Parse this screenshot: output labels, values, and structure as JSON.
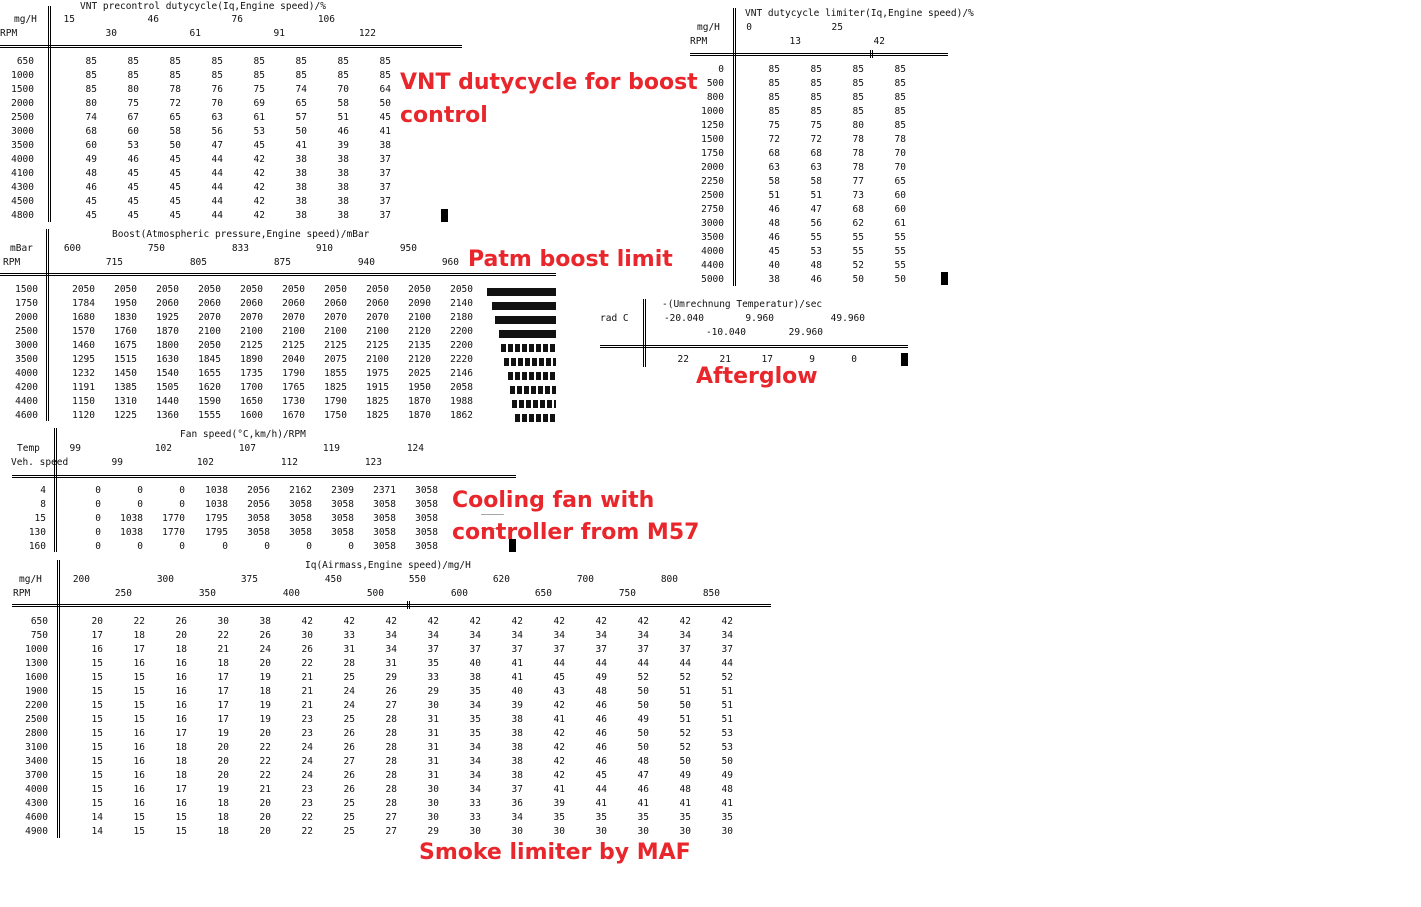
{
  "annotations": {
    "vnt": [
      "VNT dutycycle for boost",
      "control"
    ],
    "patm": "Patm boost limit",
    "afterglow": "Afterglow",
    "fan": [
      "Cooling fan with",
      "controller from M57"
    ],
    "smoke": "Smoke limiter by MAF"
  },
  "colors": {
    "annotation": "#e8262b",
    "text": "#111111",
    "background": "#ffffff"
  },
  "vnt_precontrol": {
    "title": "VNT precontrol dutycycle(Iq,Engine speed)/%",
    "x_unit": "mg/H",
    "y_unit": "RPM",
    "x_values": [
      "15",
      "30",
      "46",
      "61",
      "76",
      "91",
      "106",
      "122"
    ],
    "rows": [
      {
        "rpm": "650",
        "values": [
          "85",
          "85",
          "85",
          "85",
          "85",
          "85",
          "85",
          "85"
        ]
      },
      {
        "rpm": "1000",
        "values": [
          "85",
          "85",
          "85",
          "85",
          "85",
          "85",
          "85",
          "85"
        ]
      },
      {
        "rpm": "1500",
        "values": [
          "85",
          "80",
          "78",
          "76",
          "75",
          "74",
          "70",
          "64"
        ]
      },
      {
        "rpm": "2000",
        "values": [
          "80",
          "75",
          "72",
          "70",
          "69",
          "65",
          "58",
          "50"
        ]
      },
      {
        "rpm": "2500",
        "values": [
          "74",
          "67",
          "65",
          "63",
          "61",
          "57",
          "51",
          "45"
        ]
      },
      {
        "rpm": "3000",
        "values": [
          "68",
          "60",
          "58",
          "56",
          "53",
          "50",
          "46",
          "41"
        ]
      },
      {
        "rpm": "3500",
        "values": [
          "60",
          "53",
          "50",
          "47",
          "45",
          "41",
          "39",
          "38"
        ]
      },
      {
        "rpm": "4000",
        "values": [
          "49",
          "46",
          "45",
          "44",
          "42",
          "38",
          "38",
          "37"
        ]
      },
      {
        "rpm": "4100",
        "values": [
          "48",
          "45",
          "45",
          "44",
          "42",
          "38",
          "38",
          "37"
        ]
      },
      {
        "rpm": "4300",
        "values": [
          "46",
          "45",
          "45",
          "44",
          "42",
          "38",
          "38",
          "37"
        ]
      },
      {
        "rpm": "4500",
        "values": [
          "45",
          "45",
          "45",
          "44",
          "42",
          "38",
          "38",
          "37"
        ]
      },
      {
        "rpm": "4800",
        "values": [
          "45",
          "45",
          "45",
          "44",
          "42",
          "38",
          "38",
          "37"
        ]
      }
    ]
  },
  "vnt_limiter": {
    "title": "VNT dutycycle limiter(Iq,Engine speed)/%",
    "x_unit": "mg/H",
    "y_unit": "RPM",
    "x_values": [
      "0",
      "13",
      "25",
      "42"
    ],
    "rows": [
      {
        "rpm": "0",
        "values": [
          "85",
          "85",
          "85",
          "85"
        ]
      },
      {
        "rpm": "500",
        "values": [
          "85",
          "85",
          "85",
          "85"
        ]
      },
      {
        "rpm": "800",
        "values": [
          "85",
          "85",
          "85",
          "85"
        ]
      },
      {
        "rpm": "1000",
        "values": [
          "85",
          "85",
          "85",
          "85"
        ]
      },
      {
        "rpm": "1250",
        "values": [
          "75",
          "75",
          "80",
          "85"
        ]
      },
      {
        "rpm": "1500",
        "values": [
          "72",
          "72",
          "78",
          "78"
        ]
      },
      {
        "rpm": "1750",
        "values": [
          "68",
          "68",
          "78",
          "70"
        ]
      },
      {
        "rpm": "2000",
        "values": [
          "63",
          "63",
          "78",
          "70"
        ]
      },
      {
        "rpm": "2250",
        "values": [
          "58",
          "58",
          "77",
          "65"
        ]
      },
      {
        "rpm": "2500",
        "values": [
          "51",
          "51",
          "73",
          "60"
        ]
      },
      {
        "rpm": "2750",
        "values": [
          "46",
          "47",
          "68",
          "60"
        ]
      },
      {
        "rpm": "3000",
        "values": [
          "48",
          "56",
          "62",
          "61"
        ]
      },
      {
        "rpm": "3500",
        "values": [
          "46",
          "55",
          "55",
          "55"
        ]
      },
      {
        "rpm": "4000",
        "values": [
          "45",
          "53",
          "55",
          "55"
        ]
      },
      {
        "rpm": "4400",
        "values": [
          "40",
          "48",
          "52",
          "55"
        ]
      },
      {
        "rpm": "5000",
        "values": [
          "38",
          "46",
          "50",
          "50"
        ]
      }
    ]
  },
  "boost": {
    "title": "Boost(Atmospheric pressure,Engine speed)/mBar",
    "x_unit": "mBar",
    "y_unit": "RPM",
    "x_values": [
      "600",
      "715",
      "750",
      "805",
      "833",
      "875",
      "910",
      "940",
      "950",
      "960"
    ],
    "rows": [
      {
        "rpm": "1500",
        "values": [
          "2050",
          "2050",
          "2050",
          "2050",
          "2050",
          "2050",
          "2050",
          "2050",
          "2050",
          "2050"
        ]
      },
      {
        "rpm": "1750",
        "values": [
          "1784",
          "1950",
          "2060",
          "2060",
          "2060",
          "2060",
          "2060",
          "2060",
          "2090",
          "2140"
        ]
      },
      {
        "rpm": "2000",
        "values": [
          "1680",
          "1830",
          "1925",
          "2070",
          "2070",
          "2070",
          "2070",
          "2070",
          "2100",
          "2180"
        ]
      },
      {
        "rpm": "2500",
        "values": [
          "1570",
          "1760",
          "1870",
          "2100",
          "2100",
          "2100",
          "2100",
          "2100",
          "2120",
          "2200"
        ]
      },
      {
        "rpm": "3000",
        "values": [
          "1460",
          "1675",
          "1800",
          "2050",
          "2125",
          "2125",
          "2125",
          "2125",
          "2135",
          "2200"
        ]
      },
      {
        "rpm": "3500",
        "values": [
          "1295",
          "1515",
          "1630",
          "1845",
          "1890",
          "2040",
          "2075",
          "2100",
          "2120",
          "2220"
        ]
      },
      {
        "rpm": "4000",
        "values": [
          "1232",
          "1450",
          "1540",
          "1655",
          "1735",
          "1790",
          "1855",
          "1975",
          "2025",
          "2146"
        ]
      },
      {
        "rpm": "4200",
        "values": [
          "1191",
          "1385",
          "1505",
          "1620",
          "1700",
          "1765",
          "1825",
          "1915",
          "1950",
          "2058"
        ]
      },
      {
        "rpm": "4400",
        "values": [
          "1150",
          "1310",
          "1440",
          "1590",
          "1650",
          "1730",
          "1790",
          "1825",
          "1870",
          "1988"
        ]
      },
      {
        "rpm": "4600",
        "values": [
          "1120",
          "1225",
          "1360",
          "1555",
          "1600",
          "1670",
          "1750",
          "1825",
          "1870",
          "1862"
        ]
      }
    ]
  },
  "afterglow": {
    "title": "-(Umrechnung Temperatur)/sec",
    "x_unit": "rad C",
    "x_values": [
      "-20.040",
      "-10.040",
      "9.960",
      "29.960",
      "49.960"
    ],
    "values": [
      "22",
      "21",
      "17",
      "9",
      "0"
    ]
  },
  "fan": {
    "title": "Fan speed(°C,km/h)/RPM",
    "row1_label": "Temp",
    "row2_label": "Veh. speed",
    "temp_values": [
      "99",
      "102",
      "107",
      "119",
      "124"
    ],
    "speed_values": [
      "99",
      "102",
      "112",
      "123"
    ],
    "rows": [
      {
        "label": "4",
        "values": [
          "0",
          "0",
          "0",
          "1038",
          "2056",
          "2162",
          "2309",
          "2371",
          "3058"
        ]
      },
      {
        "label": "8",
        "values": [
          "0",
          "0",
          "0",
          "1038",
          "2056",
          "3058",
          "3058",
          "3058",
          "3058"
        ]
      },
      {
        "label": "15",
        "values": [
          "0",
          "1038",
          "1770",
          "1795",
          "3058",
          "3058",
          "3058",
          "3058",
          "3058"
        ]
      },
      {
        "label": "130",
        "values": [
          "0",
          "1038",
          "1770",
          "1795",
          "3058",
          "3058",
          "3058",
          "3058",
          "3058"
        ]
      },
      {
        "label": "160",
        "values": [
          "0",
          "0",
          "0",
          "0",
          "0",
          "0",
          "0",
          "3058",
          "3058"
        ]
      }
    ]
  },
  "smoke": {
    "title": "Iq(Airmass,Engine speed)/mg/H",
    "x_unit": "mg/H",
    "y_unit": "RPM",
    "x_values": [
      "200",
      "250",
      "300",
      "350",
      "375",
      "400",
      "450",
      "500",
      "550",
      "600",
      "620",
      "650",
      "700",
      "750",
      "800",
      "850"
    ],
    "rows": [
      {
        "rpm": "650",
        "values": [
          "20",
          "22",
          "26",
          "30",
          "38",
          "42",
          "42",
          "42",
          "42",
          "42",
          "42",
          "42",
          "42",
          "42",
          "42",
          "42"
        ]
      },
      {
        "rpm": "750",
        "values": [
          "17",
          "18",
          "20",
          "22",
          "26",
          "30",
          "33",
          "34",
          "34",
          "34",
          "34",
          "34",
          "34",
          "34",
          "34",
          "34"
        ]
      },
      {
        "rpm": "1000",
        "values": [
          "16",
          "17",
          "18",
          "21",
          "24",
          "26",
          "31",
          "34",
          "37",
          "37",
          "37",
          "37",
          "37",
          "37",
          "37",
          "37"
        ]
      },
      {
        "rpm": "1300",
        "values": [
          "15",
          "16",
          "16",
          "18",
          "20",
          "22",
          "28",
          "31",
          "35",
          "40",
          "41",
          "44",
          "44",
          "44",
          "44",
          "44"
        ]
      },
      {
        "rpm": "1600",
        "values": [
          "15",
          "15",
          "16",
          "17",
          "19",
          "21",
          "25",
          "29",
          "33",
          "38",
          "41",
          "45",
          "49",
          "52",
          "52",
          "52"
        ]
      },
      {
        "rpm": "1900",
        "values": [
          "15",
          "15",
          "16",
          "17",
          "18",
          "21",
          "24",
          "26",
          "29",
          "35",
          "40",
          "43",
          "48",
          "50",
          "51",
          "51"
        ]
      },
      {
        "rpm": "2200",
        "values": [
          "15",
          "15",
          "16",
          "17",
          "19",
          "21",
          "24",
          "27",
          "30",
          "34",
          "39",
          "42",
          "46",
          "50",
          "50",
          "51"
        ]
      },
      {
        "rpm": "2500",
        "values": [
          "15",
          "15",
          "16",
          "17",
          "19",
          "23",
          "25",
          "28",
          "31",
          "35",
          "38",
          "41",
          "46",
          "49",
          "51",
          "51"
        ]
      },
      {
        "rpm": "2800",
        "values": [
          "15",
          "16",
          "17",
          "19",
          "20",
          "23",
          "26",
          "28",
          "31",
          "35",
          "38",
          "42",
          "46",
          "50",
          "52",
          "53"
        ]
      },
      {
        "rpm": "3100",
        "values": [
          "15",
          "16",
          "18",
          "20",
          "22",
          "24",
          "26",
          "28",
          "31",
          "34",
          "38",
          "42",
          "46",
          "50",
          "52",
          "53"
        ]
      },
      {
        "rpm": "3400",
        "values": [
          "15",
          "16",
          "18",
          "20",
          "22",
          "24",
          "27",
          "28",
          "31",
          "34",
          "38",
          "42",
          "46",
          "48",
          "50",
          "50"
        ]
      },
      {
        "rpm": "3700",
        "values": [
          "15",
          "16",
          "18",
          "20",
          "22",
          "24",
          "26",
          "28",
          "31",
          "34",
          "38",
          "42",
          "45",
          "47",
          "49",
          "49"
        ]
      },
      {
        "rpm": "4000",
        "values": [
          "15",
          "16",
          "17",
          "19",
          "21",
          "23",
          "26",
          "28",
          "30",
          "34",
          "37",
          "41",
          "44",
          "46",
          "48",
          "48"
        ]
      },
      {
        "rpm": "4300",
        "values": [
          "15",
          "16",
          "16",
          "18",
          "20",
          "23",
          "25",
          "28",
          "30",
          "33",
          "36",
          "39",
          "41",
          "41",
          "41",
          "41"
        ]
      },
      {
        "rpm": "4600",
        "values": [
          "14",
          "15",
          "15",
          "18",
          "20",
          "22",
          "25",
          "27",
          "30",
          "33",
          "34",
          "35",
          "35",
          "35",
          "35",
          "35"
        ]
      },
      {
        "rpm": "4900",
        "values": [
          "14",
          "15",
          "15",
          "18",
          "20",
          "22",
          "25",
          "27",
          "29",
          "30",
          "30",
          "30",
          "30",
          "30",
          "30",
          "30"
        ]
      }
    ]
  },
  "boost_bars": [
    1.0,
    0.93,
    0.88,
    0.82,
    0.8,
    0.76,
    0.7,
    0.66,
    0.64,
    0.6
  ]
}
